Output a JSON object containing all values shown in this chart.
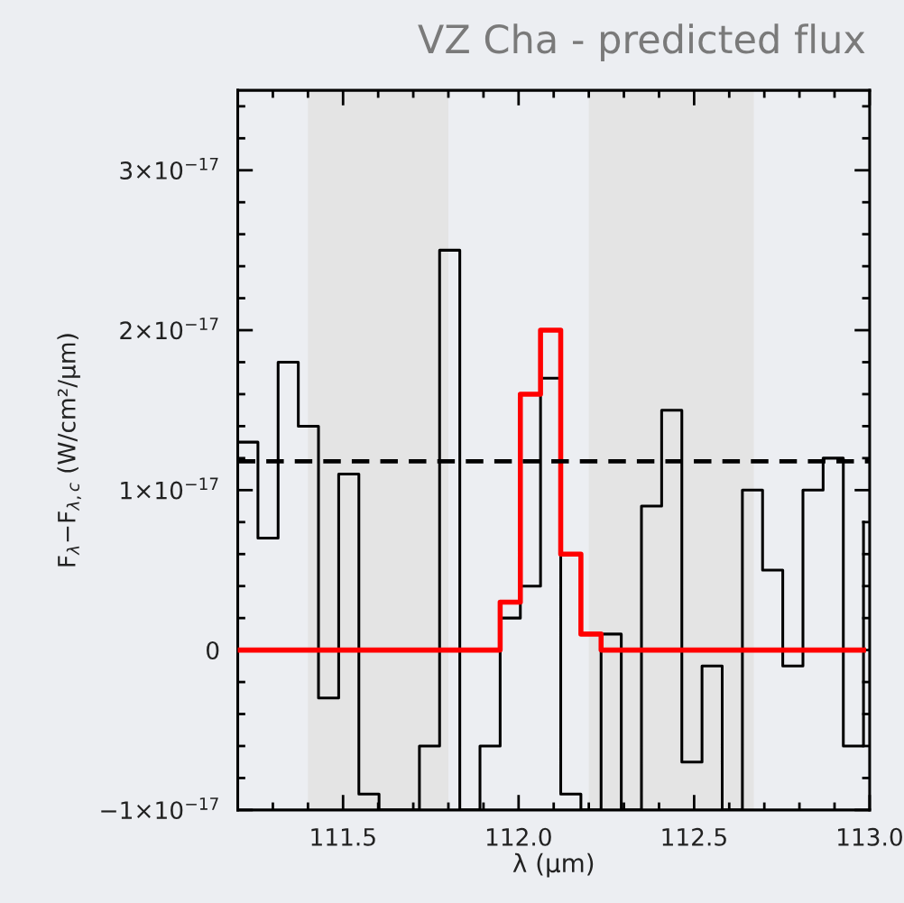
{
  "chart_data": {
    "type": "step",
    "title": "VZ Cha - predicted flux",
    "xlabel": "λ (μm)",
    "ylabel": "F$_{λ}$−F$_{λ,c}$ (W/cm²/μm)",
    "series": [
      {
        "color": "#000000",
        "x": [
          111.2,
          111.2575,
          111.315,
          111.3725,
          111.43,
          111.4875,
          111.545,
          111.6025,
          111.66,
          111.7175,
          111.775,
          111.8325,
          111.89,
          111.9475,
          112.005,
          112.0625,
          112.12,
          112.1775,
          112.235,
          112.2925,
          112.35,
          112.4075,
          112.465,
          112.5225,
          112.58,
          112.6375,
          112.695,
          112.7525,
          112.81,
          112.8675,
          112.925,
          112.9825
        ],
        "values": [
          1.3e-17,
          7e-18,
          1.8e-17,
          1.4e-17,
          -3e-18,
          1.1e-17,
          -9e-18,
          -1e-17,
          -1e-17,
          -6e-18,
          2.5e-17,
          -1e-17,
          -6e-18,
          2e-18,
          4e-18,
          1.7e-17,
          -9e-18,
          -1e-17,
          1e-18,
          -1e-17,
          9e-18,
          1.5e-17,
          -7e-18,
          -1e-18,
          -1e-17,
          1e-17,
          5e-18,
          -1e-18,
          1e-17,
          1.2e-17,
          -6e-18,
          8e-18
        ]
      },
      {
        "color": "#ff0000",
        "x": [
          111.2,
          111.2575,
          111.315,
          111.3725,
          111.43,
          111.4875,
          111.545,
          111.6025,
          111.66,
          111.7175,
          111.775,
          111.8325,
          111.89,
          111.9475,
          112.005,
          112.0625,
          112.12,
          112.1775,
          112.235,
          112.2925,
          112.35,
          112.4075,
          112.465,
          112.5225,
          112.58,
          112.6375,
          112.695,
          112.7525,
          112.81,
          112.8675,
          112.925,
          112.9825
        ],
        "values": [
          0,
          0,
          0,
          0,
          0,
          0,
          0,
          0,
          0,
          0,
          0,
          0,
          0,
          3e-18,
          1.6e-17,
          2e-17,
          6e-18,
          1e-18,
          0,
          0,
          0,
          0,
          0,
          0,
          0,
          0,
          0,
          0,
          0,
          0,
          0,
          0
        ]
      }
    ],
    "xlim": [
      111.2,
      113.0
    ],
    "xticks": [
      111.5,
      {
        "value": 112.0,
        "label": "112.0"
      },
      112.5,
      {
        "value": 113.0,
        "label": "113.0"
      }
    ],
    "ylim": [
      -1e-17,
      3.5e-17
    ],
    "yticks": [
      {
        "value": -1e-17,
        "label": "−1×10$^{−17}$"
      },
      0,
      {
        "value": 1e-17,
        "label": "1×10$^{−17}$"
      },
      {
        "value": 2e-17,
        "label": "2×10$^{−17}$"
      },
      {
        "value": 3e-17,
        "label": "3×10$^{−17}$"
      }
    ],
    "ref_lines": [
      {
        "axis": "y",
        "value": 1.18e-17,
        "color": "#000000",
        "line_style": "dashed"
      }
    ],
    "bands": [
      {
        "axis": "x",
        "from": 111.4,
        "to": 111.8,
        "color": "#e4e4e4"
      },
      {
        "axis": "x",
        "from": 112.2,
        "to": 112.67,
        "color": "#e4e4e4"
      }
    ],
    "grid": false,
    "legend": false
  }
}
